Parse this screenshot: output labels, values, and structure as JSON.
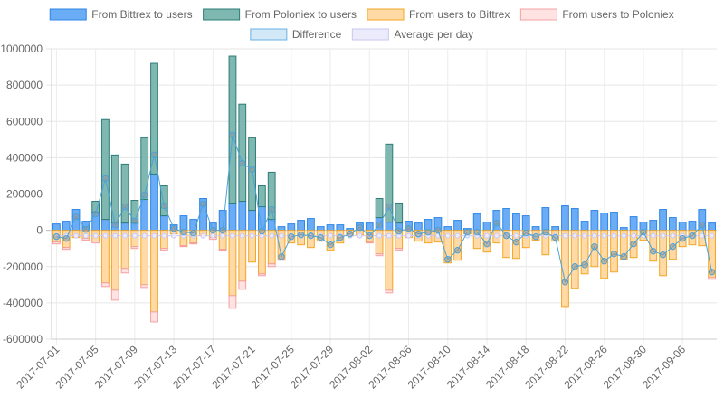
{
  "chart_data": {
    "type": "bar",
    "legend": [
      {
        "name": "From Bittrex to users",
        "fill": "#6aacf5",
        "stroke": "#2f86e6"
      },
      {
        "name": "From Poloniex to users",
        "fill": "#7fb7b1",
        "stroke": "#2e7d78"
      },
      {
        "name": "From users to Bittrex",
        "fill": "#ffd9a6",
        "stroke": "#f5a623"
      },
      {
        "name": "From users to Poloniex",
        "fill": "#ffe3e3",
        "stroke": "#f4a0a0"
      },
      {
        "name": "Difference",
        "fill": "#d3e8f7",
        "stroke": "#67b1e4"
      },
      {
        "name": "Average per day",
        "fill": "#ecebfb",
        "stroke": "#c9c7ef"
      }
    ],
    "ylim": [
      -600000,
      1000000
    ],
    "yticks": [
      1000000,
      800000,
      600000,
      400000,
      200000,
      0,
      -200000,
      -400000,
      -600000
    ],
    "ytick_labels": [
      "1000000",
      "800000",
      "600000",
      "400000",
      "200000",
      "0",
      "-200000",
      "-400000",
      "-600000"
    ],
    "xtick_labels": [
      "2017-07-01",
      "2017-07-05",
      "2017-07-09",
      "2017-07-13",
      "2017-07-17",
      "2017-07-21",
      "2017-07-25",
      "2017-07-29",
      "2017-08-02",
      "2017-08-06",
      "2017-08-10",
      "2017-08-14",
      "2017-08-18",
      "2017-08-22",
      "2017-08-26",
      "2017-08-30",
      "2017-09-06"
    ],
    "xtick_every": 4,
    "grid": true,
    "legend_position": "top",
    "series": [
      {
        "name": "From Bittrex to users",
        "values": [
          35000,
          50000,
          115000,
          50000,
          100000,
          60000,
          40000,
          40000,
          40000,
          170000,
          310000,
          80000,
          30000,
          80000,
          60000,
          175000,
          40000,
          110000,
          150000,
          160000,
          110000,
          130000,
          60000,
          20000,
          35000,
          55000,
          65000,
          20000,
          30000,
          30000,
          10000,
          40000,
          40000,
          70000,
          45000,
          40000,
          50000,
          40000,
          60000,
          70000,
          20000,
          55000,
          10000,
          90000,
          45000,
          110000,
          120000,
          90000,
          80000,
          20000,
          125000,
          20000,
          135000,
          120000,
          50000,
          110000,
          95000,
          100000,
          15000,
          75000,
          45000,
          55000,
          115000,
          70000,
          45000,
          50000,
          115000,
          40000
        ]
      },
      {
        "name": "From Poloniex to users",
        "values": [
          0,
          0,
          0,
          0,
          60000,
          550000,
          375000,
          325000,
          125000,
          340000,
          610000,
          165000,
          0,
          0,
          0,
          0,
          0,
          0,
          810000,
          535000,
          400000,
          115000,
          260000,
          0,
          0,
          0,
          0,
          0,
          0,
          0,
          0,
          0,
          0,
          105000,
          430000,
          110000,
          0,
          0,
          0,
          0,
          0,
          0,
          0,
          0,
          0,
          0,
          0,
          0,
          0,
          0,
          0,
          0,
          0,
          0,
          0,
          0,
          0,
          0,
          0,
          0,
          0,
          0,
          0,
          0,
          0,
          0,
          0,
          0
        ]
      },
      {
        "name": "From users to Bittrex",
        "values": [
          -65000,
          -95000,
          -40000,
          -45000,
          -60000,
          -290000,
          -330000,
          -210000,
          -90000,
          -300000,
          -450000,
          -100000,
          -20000,
          -85000,
          -70000,
          -30000,
          -40000,
          -105000,
          -360000,
          -280000,
          -175000,
          -240000,
          -185000,
          -160000,
          -70000,
          -80000,
          -95000,
          -60000,
          -110000,
          -70000,
          -30000,
          -25000,
          -65000,
          -130000,
          -330000,
          -100000,
          -40000,
          -60000,
          -70000,
          -65000,
          -180000,
          -165000,
          -20000,
          -100000,
          -120000,
          -70000,
          -150000,
          -155000,
          -95000,
          -55000,
          -135000,
          -60000,
          -420000,
          -320000,
          -240000,
          -200000,
          -265000,
          -230000,
          -160000,
          -150000,
          -55000,
          -170000,
          -250000,
          -160000,
          -90000,
          -80000,
          -85000,
          -260000
        ]
      },
      {
        "name": "From users to Poloniex",
        "values": [
          -10000,
          -10000,
          0,
          -10000,
          -10000,
          -20000,
          -55000,
          -25000,
          -10000,
          -15000,
          -55000,
          -10000,
          0,
          -5000,
          -5000,
          0,
          -10000,
          -5000,
          -70000,
          -45000,
          0,
          -10000,
          -15000,
          -5000,
          0,
          0,
          0,
          0,
          0,
          0,
          0,
          0,
          -5000,
          -10000,
          -15000,
          -10000,
          0,
          0,
          0,
          0,
          0,
          0,
          0,
          0,
          0,
          0,
          0,
          0,
          0,
          0,
          0,
          0,
          0,
          0,
          0,
          0,
          0,
          0,
          0,
          0,
          0,
          0,
          0,
          0,
          0,
          0,
          0,
          -10000
        ]
      },
      {
        "name": "Difference",
        "values": [
          -35000,
          -45000,
          75000,
          5000,
          90000,
          285000,
          30000,
          130000,
          50000,
          195000,
          415000,
          135000,
          10000,
          -10000,
          -15000,
          145000,
          0,
          0,
          525000,
          370000,
          335000,
          -5000,
          115000,
          -145000,
          -35000,
          -25000,
          -30000,
          -40000,
          -80000,
          -40000,
          -20000,
          15000,
          -30000,
          30000,
          130000,
          -5000,
          10000,
          -20000,
          -10000,
          0,
          -160000,
          -110000,
          -10000,
          -10000,
          -75000,
          40000,
          -30000,
          -65000,
          -15000,
          -35000,
          -10000,
          -40000,
          -285000,
          -200000,
          -190000,
          -90000,
          -170000,
          -130000,
          -145000,
          -75000,
          -10000,
          -115000,
          -135000,
          -90000,
          -45000,
          -30000,
          30000,
          -230000
        ]
      },
      {
        "name": "Average per day",
        "values": [
          -30000,
          -30000,
          -30000,
          -30000,
          -30000,
          -30000,
          -30000,
          -30000,
          -30000,
          -30000,
          -30000,
          -30000,
          -30000,
          -30000,
          -30000,
          -30000,
          -30000,
          -30000,
          -30000,
          -30000,
          -30000,
          -30000,
          -30000,
          -30000,
          -30000,
          -30000,
          -30000,
          -30000,
          -30000,
          -30000,
          -30000,
          -30000,
          -30000,
          -30000,
          -30000,
          -30000,
          -30000,
          -30000,
          -30000,
          -30000,
          -30000,
          -30000,
          -30000,
          -30000,
          -30000,
          -30000,
          -30000,
          -30000,
          -30000,
          -30000,
          -30000,
          -30000,
          -30000,
          -30000,
          -30000,
          -30000,
          -30000,
          -30000,
          -30000,
          -30000,
          -30000,
          -30000,
          -30000,
          -30000,
          -30000,
          -30000,
          -30000,
          -30000
        ]
      }
    ]
  }
}
